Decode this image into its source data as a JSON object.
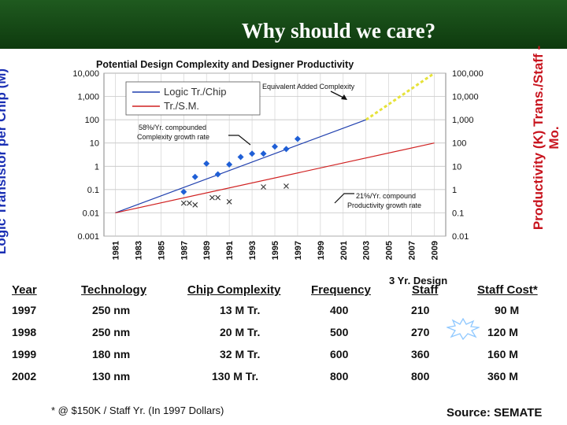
{
  "slide": {
    "title": "Why should we care?",
    "source": "Source: SEMATE",
    "footnote": "* @ $150K / Staff Yr. (In 1997 Dollars)",
    "banner_color": "#15451a"
  },
  "chart_data": {
    "type": "line",
    "title": "Potential Design Complexity and Designer Productivity",
    "left_ylabel": "Logic Transistor per Chip (M)",
    "right_ylabel": "Productivity (K) Trans./Staff - Mo.",
    "yscale": "log",
    "left_ylim": [
      0.001,
      10000
    ],
    "right_ylim": [
      0.01,
      100000
    ],
    "left_ticks": [
      "10,000",
      "1,000",
      "100",
      "10",
      "1",
      "0.1",
      "0.01",
      "0.001"
    ],
    "right_ticks": [
      "100,000",
      "10,000",
      "1,000",
      "100",
      "10",
      "1",
      "0.1",
      "0.01"
    ],
    "x_ticks": [
      "1981",
      "1983",
      "1985",
      "1987",
      "1989",
      "1991",
      "1993",
      "1995",
      "1997",
      "1999",
      "2001",
      "2003",
      "2005",
      "2007",
      "2009"
    ],
    "grid": true,
    "legend_position": "top-left",
    "series": [
      {
        "name": "Logic Tr./Chip",
        "color": "#1f3fae",
        "x": [
          1981,
          2003
        ],
        "y": [
          0.01,
          100
        ],
        "axis": "left"
      },
      {
        "name": "Tr./S.M.",
        "color": "#d02020",
        "x": [
          1981,
          2009
        ],
        "y": [
          0.01,
          10
        ],
        "axis": "left"
      },
      {
        "name": "",
        "color": "#e6e23a",
        "dashed": true,
        "x": [
          2003,
          2009
        ],
        "y": [
          100,
          10000
        ],
        "axis": "left"
      }
    ],
    "complexity_points": {
      "color": "#1f5fd6",
      "x": [
        1987,
        1988,
        1989,
        1990,
        1991,
        1992,
        1993,
        1994,
        1995,
        1996,
        1997
      ],
      "y": [
        0.08,
        0.35,
        1.3,
        0.45,
        1.2,
        2.5,
        3.5,
        3.5,
        7,
        5.5,
        15
      ]
    },
    "productivity_points": {
      "color": "#333333",
      "x": [
        1987,
        1987.5,
        1988,
        1989.5,
        1990,
        1991,
        1994,
        1996
      ],
      "y": [
        0.026,
        0.026,
        0.022,
        0.045,
        0.045,
        0.03,
        0.13,
        0.14
      ]
    },
    "annotations": {
      "added_complexity": "Equivalent Added Complexity",
      "growth_58": [
        "58%/Yr. compounded",
        "Complexity growth rate"
      ],
      "growth_21": [
        "21%/Yr. compound",
        "Productivity growth rate"
      ],
      "three_year_design": "3 Yr. Design"
    }
  },
  "table": {
    "headers": [
      "Year",
      "Technology",
      "Chip Complexity",
      "Frequency",
      "Staff",
      "Staff Cost*"
    ],
    "rows": [
      [
        "1997",
        "250 nm",
        "13 M Tr.",
        "400",
        "210",
        "90 M"
      ],
      [
        "1998",
        "250 nm",
        "20 M Tr.",
        "500",
        "270",
        "120 M"
      ],
      [
        "1999",
        "180 nm",
        "32 M Tr.",
        "600",
        "360",
        "160 M"
      ],
      [
        "2002",
        "130 nm",
        "130 M Tr.",
        "800",
        "800",
        "360 M"
      ]
    ]
  }
}
